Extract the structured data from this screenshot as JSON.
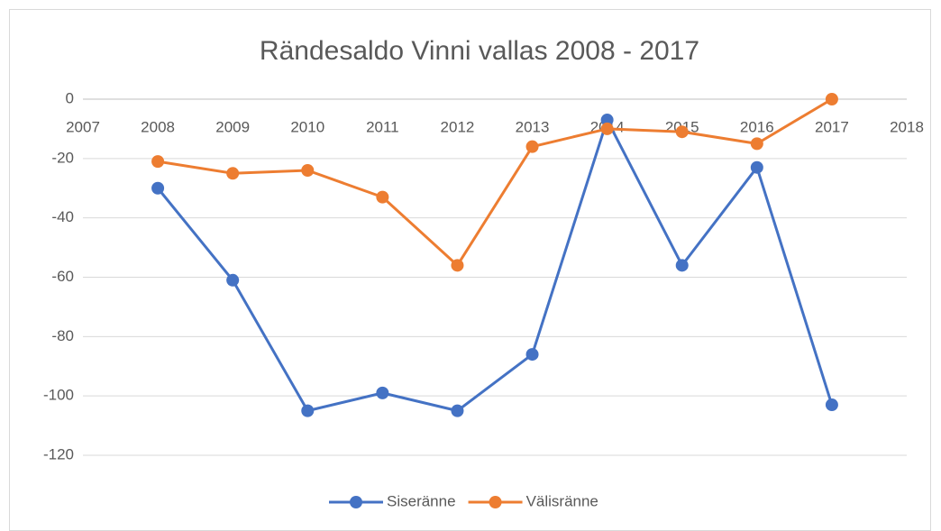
{
  "chart_data": {
    "type": "line",
    "title": "Rändesaldo Vinni vallas 2008 - 2017",
    "x": [
      2008,
      2009,
      2010,
      2011,
      2012,
      2013,
      2014,
      2015,
      2016,
      2017
    ],
    "series": [
      {
        "name": "Siseränne",
        "color": "#4472c4",
        "values": [
          -30,
          -61,
          -105,
          -99,
          -105,
          -86,
          -7,
          -56,
          -23,
          -103
        ]
      },
      {
        "name": "Välisränne",
        "color": "#ed7d31",
        "values": [
          -21,
          -25,
          -24,
          -33,
          -56,
          -16,
          -10,
          -11,
          -15,
          0
        ]
      }
    ],
    "xlim": [
      2007,
      2018
    ],
    "xticks": [
      2007,
      2008,
      2009,
      2010,
      2011,
      2012,
      2013,
      2014,
      2015,
      2016,
      2017,
      2018
    ],
    "ylim": [
      -120,
      0
    ],
    "yticks": [
      -120,
      -100,
      -80,
      -60,
      -40,
      -20,
      0
    ],
    "grid": true,
    "legend": "bottom"
  }
}
